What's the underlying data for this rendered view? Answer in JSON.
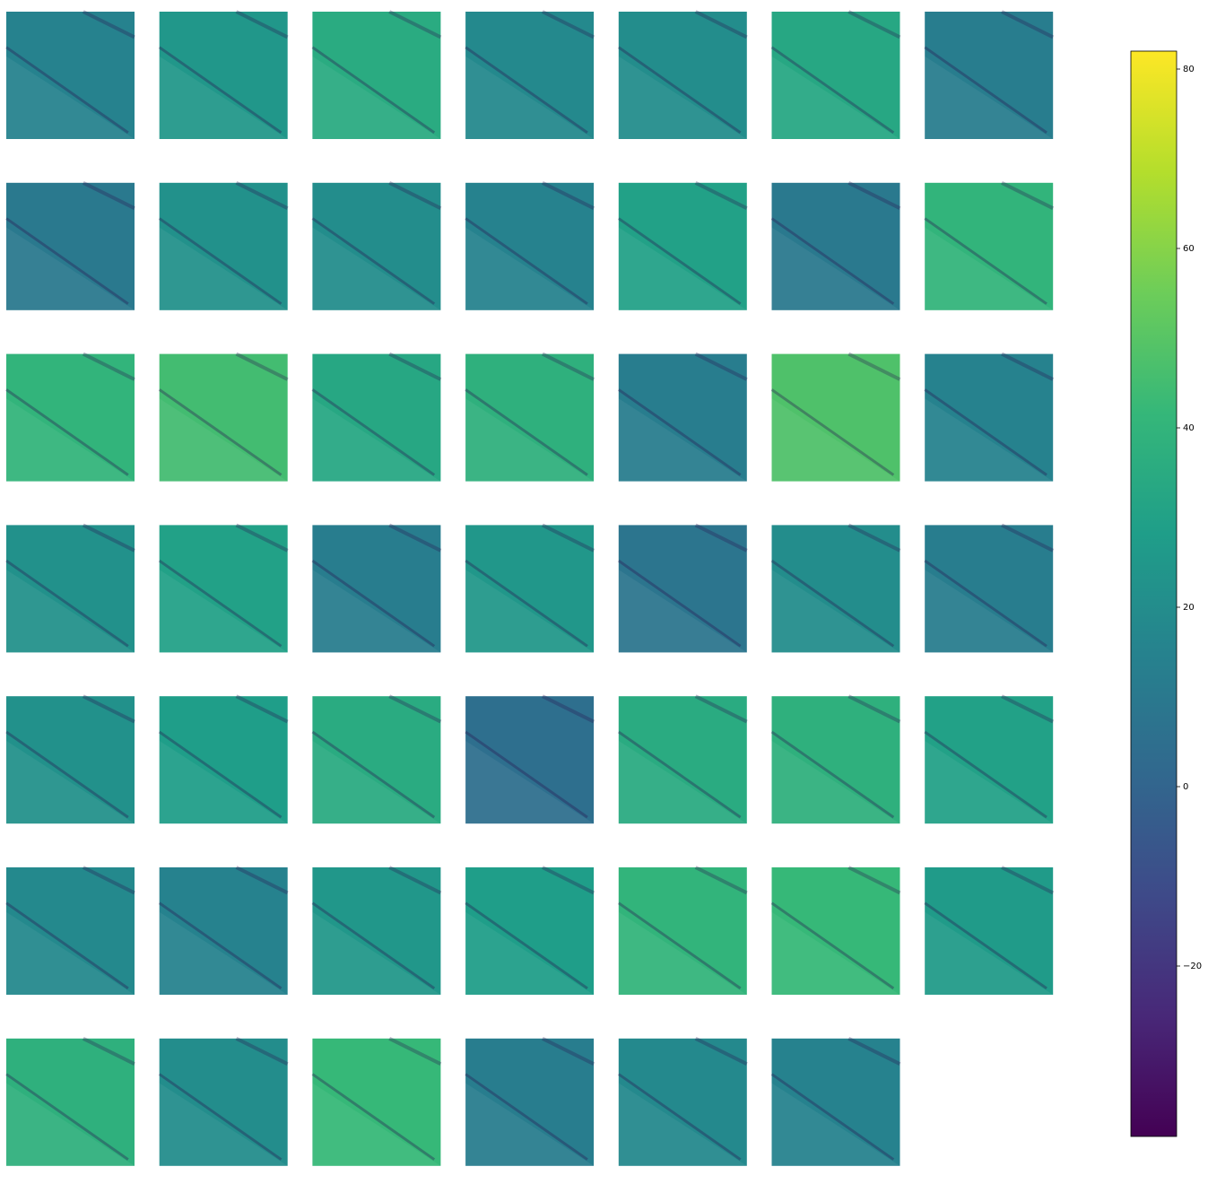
{
  "chart_data": {
    "type": "heatmap_grid",
    "cmap": "viridis",
    "columns": 7,
    "panels": [
      15,
      25,
      35,
      18,
      20,
      33,
      12,
      10,
      22,
      20,
      15,
      30,
      10,
      40,
      40,
      45,
      33,
      38,
      12,
      48,
      15,
      22,
      30,
      12,
      25,
      8,
      20,
      12,
      22,
      28,
      35,
      5,
      35,
      38,
      30,
      18,
      15,
      25,
      28,
      40,
      42,
      27,
      38,
      20,
      42,
      12,
      18,
      15
    ],
    "colorbar": {
      "ylim": [
        -39,
        82
      ],
      "yticks": [
        {
          "value": -20,
          "label": "−20"
        },
        0,
        20,
        40,
        60,
        80
      ]
    }
  }
}
